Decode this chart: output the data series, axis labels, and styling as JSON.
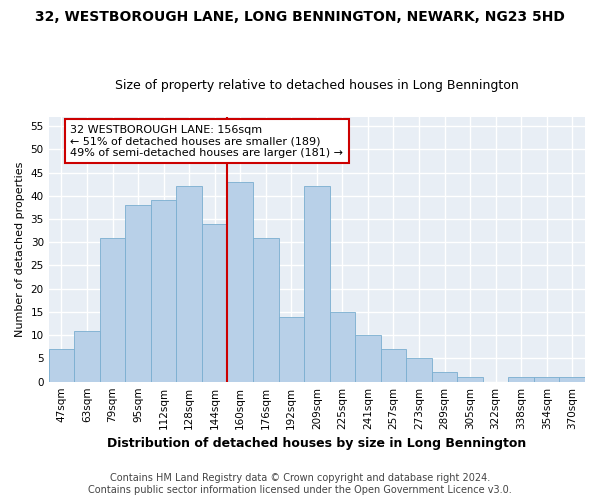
{
  "title": "32, WESTBOROUGH LANE, LONG BENNINGTON, NEWARK, NG23 5HD",
  "subtitle": "Size of property relative to detached houses in Long Bennington",
  "xlabel": "Distribution of detached houses by size in Long Bennington",
  "ylabel": "Number of detached properties",
  "footer_line1": "Contains HM Land Registry data © Crown copyright and database right 2024.",
  "footer_line2": "Contains public sector information licensed under the Open Government Licence v3.0.",
  "categories": [
    "47sqm",
    "63sqm",
    "79sqm",
    "95sqm",
    "112sqm",
    "128sqm",
    "144sqm",
    "160sqm",
    "176sqm",
    "192sqm",
    "209sqm",
    "225sqm",
    "241sqm",
    "257sqm",
    "273sqm",
    "289sqm",
    "305sqm",
    "322sqm",
    "338sqm",
    "354sqm",
    "370sqm"
  ],
  "values": [
    7,
    11,
    31,
    38,
    39,
    42,
    34,
    43,
    31,
    14,
    42,
    15,
    10,
    7,
    5,
    2,
    1,
    0,
    1,
    1,
    1
  ],
  "bar_color": "#b8d0e8",
  "bar_edge_color": "#7aaed0",
  "background_color": "#ffffff",
  "plot_bg_color": "#e8eef5",
  "grid_color": "#ffffff",
  "vline_x_index": 7,
  "vline_color": "#cc0000",
  "annotation_line1": "32 WESTBOROUGH LANE: 156sqm",
  "annotation_line2": "← 51% of detached houses are smaller (189)",
  "annotation_line3": "49% of semi-detached houses are larger (181) →",
  "annotation_box_color": "#ffffff",
  "annotation_border_color": "#cc0000",
  "ylim": [
    0,
    57
  ],
  "yticks": [
    0,
    5,
    10,
    15,
    20,
    25,
    30,
    35,
    40,
    45,
    50,
    55
  ],
  "title_fontsize": 10,
  "subtitle_fontsize": 9,
  "ylabel_fontsize": 8,
  "xlabel_fontsize": 9,
  "tick_fontsize": 7.5,
  "annotation_fontsize": 8,
  "footer_fontsize": 7
}
